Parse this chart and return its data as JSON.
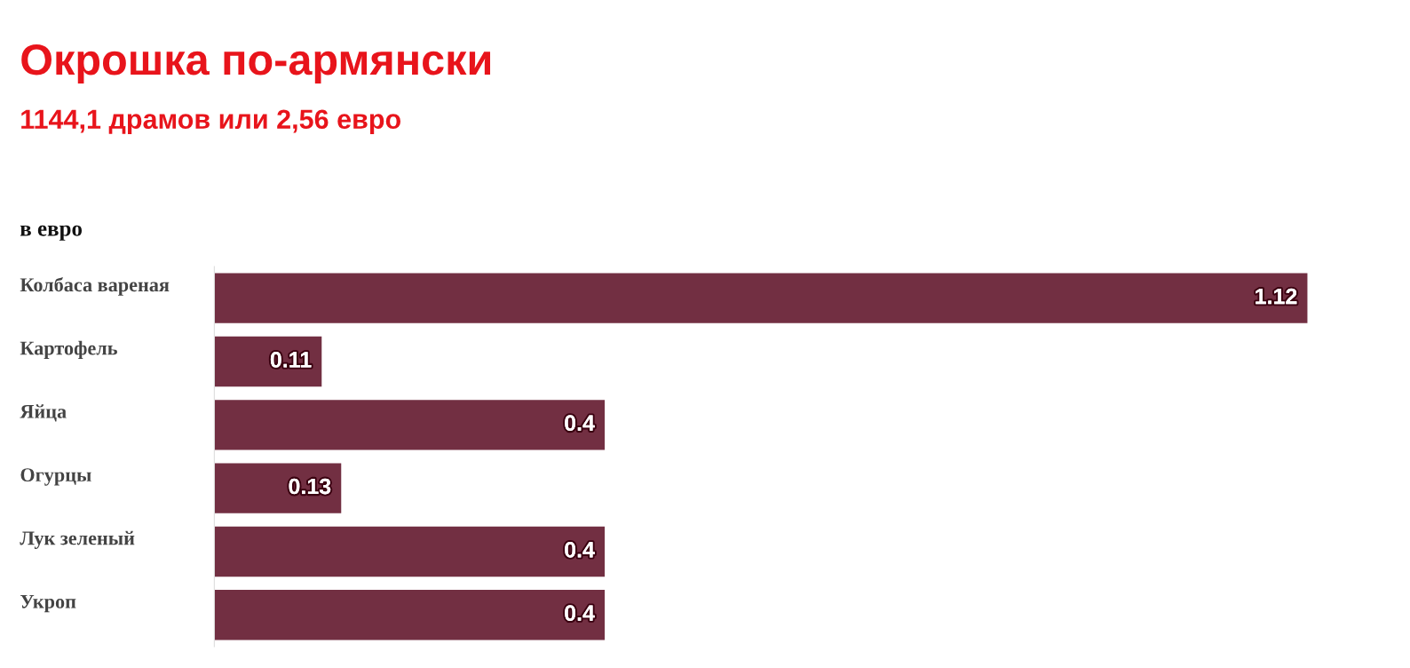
{
  "chart_data": {
    "type": "bar",
    "orientation": "horizontal",
    "title": "Окрошка по-армянски",
    "subtitle": "1144,1 драмов или 2,56 евро",
    "ylabel": "в евро",
    "categories": [
      "Колбаса вареная",
      "Картофель",
      "Яйца",
      "Огурцы",
      "Лук зеленый",
      "Укроп"
    ],
    "values": [
      1.12,
      0.11,
      0.4,
      0.13,
      0.4,
      0.4
    ],
    "color": "#722f42",
    "data_labels": true
  }
}
